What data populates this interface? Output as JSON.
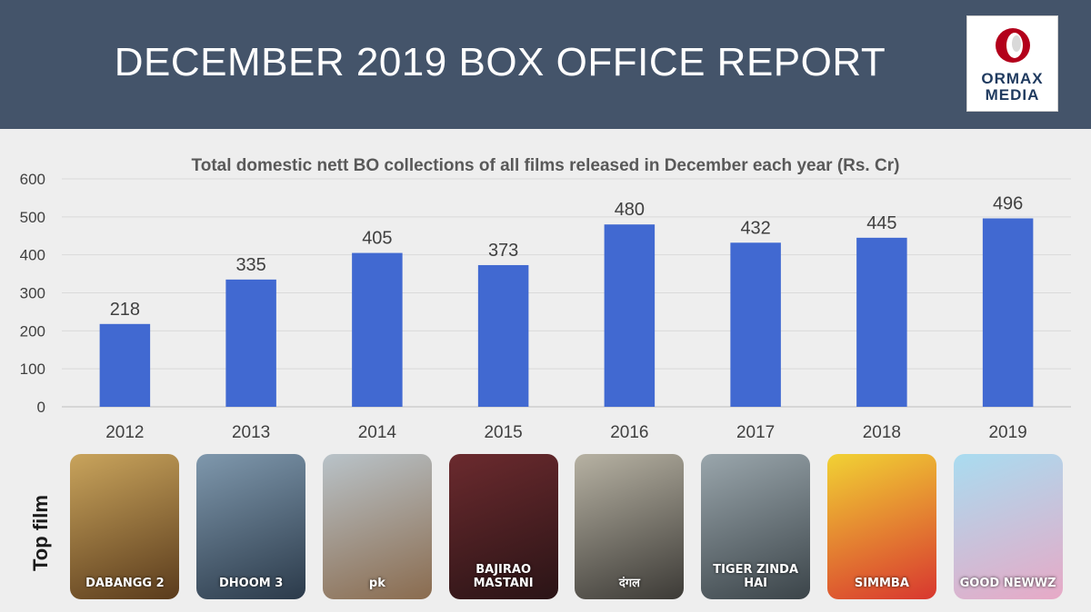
{
  "header": {
    "title": "DECEMBER 2019 BOX OFFICE REPORT",
    "logo": {
      "line1": "ORMAX",
      "line2": "MEDIA",
      "icon": "ormax-logo-icon"
    }
  },
  "colors": {
    "header_bg": "#44546a",
    "bar": "#4169d1",
    "background": "#eeeeee"
  },
  "chart_data": {
    "type": "bar",
    "title": "Total domestic nett BO collections of all films released in December each year (Rs. Cr)",
    "categories": [
      "2012",
      "2013",
      "2014",
      "2015",
      "2016",
      "2017",
      "2018",
      "2019"
    ],
    "values": [
      218,
      335,
      405,
      373,
      480,
      432,
      445,
      496
    ],
    "ylim": [
      0,
      600
    ],
    "yticks": [
      0,
      100,
      200,
      300,
      400,
      500,
      600
    ],
    "grid": true,
    "legend": false
  },
  "top_film": {
    "label": "Top film",
    "posters": [
      {
        "year": "2012",
        "caption": "DABANGG 2",
        "colors": [
          "#c9a45c",
          "#5a3b1c"
        ]
      },
      {
        "year": "2013",
        "caption": "DHOOM 3",
        "colors": [
          "#7f98ad",
          "#2b3a4a"
        ]
      },
      {
        "year": "2014",
        "caption": "pk",
        "colors": [
          "#b9c3c9",
          "#8a6b4e"
        ]
      },
      {
        "year": "2015",
        "caption": "BAJIRAO MASTANI",
        "colors": [
          "#6b2a2e",
          "#2a1416"
        ]
      },
      {
        "year": "2016",
        "caption": "दंगल",
        "colors": [
          "#b7b2a3",
          "#3c3a36"
        ]
      },
      {
        "year": "2017",
        "caption": "TIGER ZINDA HAI",
        "colors": [
          "#9aa6ac",
          "#3b4449"
        ]
      },
      {
        "year": "2018",
        "caption": "SIMMBA",
        "colors": [
          "#f1d234",
          "#d8372f"
        ]
      },
      {
        "year": "2019",
        "caption": "GOOD NEWWZ",
        "colors": [
          "#a9dcf0",
          "#e7a9c6"
        ]
      }
    ]
  }
}
